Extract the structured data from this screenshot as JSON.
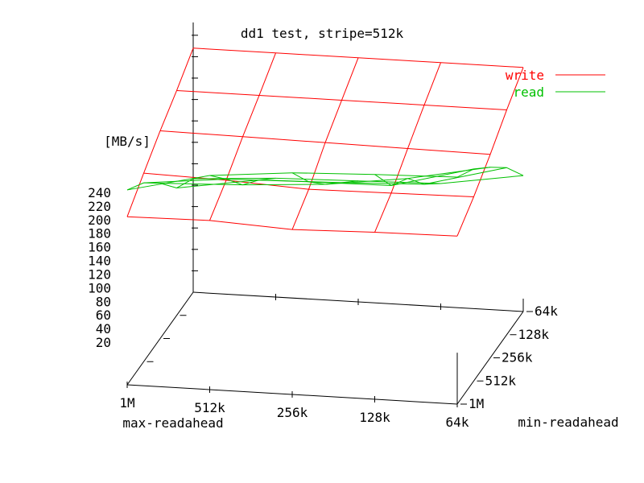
{
  "chart_data": {
    "type": "surface",
    "title": "dd1 test, stripe=512k",
    "zlabel": "[MB/s]",
    "xlabel": "max-readahead",
    "ylabel": "min-readahead",
    "x_ticks": [
      "1M",
      "512k",
      "256k",
      "128k",
      "64k"
    ],
    "y_ticks": [
      "1M",
      "512k",
      "256k",
      "128k",
      "64k"
    ],
    "z_ticks": [
      "20",
      "40",
      "60",
      "80",
      "100",
      "120",
      "140",
      "160",
      "180",
      "200",
      "220",
      "240"
    ],
    "zlim": [
      0,
      240
    ],
    "legend_position": "top-right",
    "series": [
      {
        "name": "write",
        "color": "#ff0000",
        "values": [
          [
            157,
            158,
            154,
            156,
            157
          ],
          [
            176,
            174,
            170,
            171,
            172
          ],
          [
            194,
            193,
            192,
            191,
            190
          ],
          [
            210,
            210,
            210,
            210,
            210
          ],
          [
            228,
            228,
            228,
            228,
            228
          ]
        ]
      },
      {
        "name": "read",
        "color": "#00c000",
        "values": [
          [
            182,
            200,
            207,
            210,
            212
          ],
          [
            167,
            175,
            177,
            178,
            198
          ],
          [
            145,
            148,
            153,
            163,
            178
          ],
          [
            119,
            131,
            133,
            136,
            156
          ],
          [
            106,
            111,
            113,
            115,
            127
          ]
        ]
      }
    ]
  }
}
